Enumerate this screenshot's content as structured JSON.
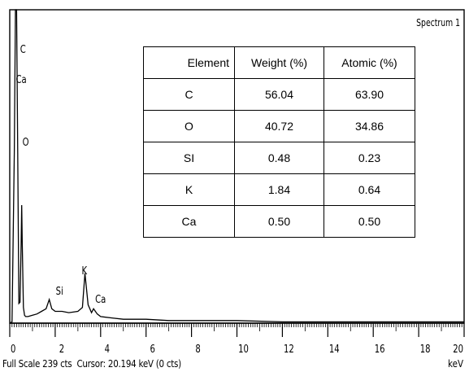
{
  "chart_data": {
    "type": "line",
    "title": "Spectrum 1",
    "x_unit": "keV",
    "xlim": [
      0,
      20
    ],
    "x_ticks": [
      0,
      2,
      4,
      6,
      8,
      10,
      12,
      14,
      16,
      18,
      20
    ],
    "x_tick_labels": [
      "0",
      "2",
      "4",
      "6",
      "8",
      "10",
      "12",
      "14",
      "16",
      "18",
      "20"
    ],
    "grid": false,
    "series": [
      {
        "x": [
          0.0,
          0.1,
          0.2,
          0.25,
          0.277,
          0.3,
          0.35,
          0.4,
          0.45,
          0.5,
          0.525,
          0.55,
          0.6,
          0.65,
          0.7,
          0.8,
          1.0,
          1.2,
          1.4,
          1.6,
          1.74,
          1.85,
          2.0,
          2.3,
          2.6,
          3.0,
          3.2,
          3.31,
          3.45,
          3.6,
          3.69,
          3.85,
          4.0,
          4.5,
          5.0,
          6.0,
          7.0,
          8.0,
          10.0,
          12.0,
          14.0,
          16.0,
          18.0,
          20.0
        ],
        "y": [
          0,
          1,
          130,
          239,
          239,
          239,
          130,
          15,
          16,
          60,
          90,
          60,
          12,
          6,
          5,
          5,
          6,
          7,
          9,
          11,
          18,
          11,
          9,
          9,
          8,
          9,
          12,
          38,
          14,
          8,
          11,
          7,
          5,
          4,
          3,
          3,
          2,
          2,
          2,
          1,
          1,
          1,
          1,
          1
        ]
      }
    ],
    "peak_labels": [
      {
        "label": "C",
        "x": 0.277
      },
      {
        "label": "Ca",
        "x": 0.341
      },
      {
        "label": "O",
        "x": 0.525
      },
      {
        "label": "Si",
        "x": 1.74
      },
      {
        "label": "K",
        "x": 3.31
      },
      {
        "label": "Ca",
        "x": 3.69
      }
    ]
  },
  "footer": {
    "full_scale": "Full Scale 239 cts",
    "cursor": "Cursor: 20.194 keV (0 cts)"
  },
  "table": {
    "headers": [
      "Element",
      "Weight (%)",
      "Atomic (%)"
    ],
    "rows": [
      [
        "C",
        "56.04",
        "63.90"
      ],
      [
        "O",
        "40.72",
        "34.86"
      ],
      [
        "SI",
        "0.48",
        "0.23"
      ],
      [
        "K",
        "1.84",
        "0.64"
      ],
      [
        "Ca",
        "0.50",
        "0.50"
      ]
    ]
  }
}
